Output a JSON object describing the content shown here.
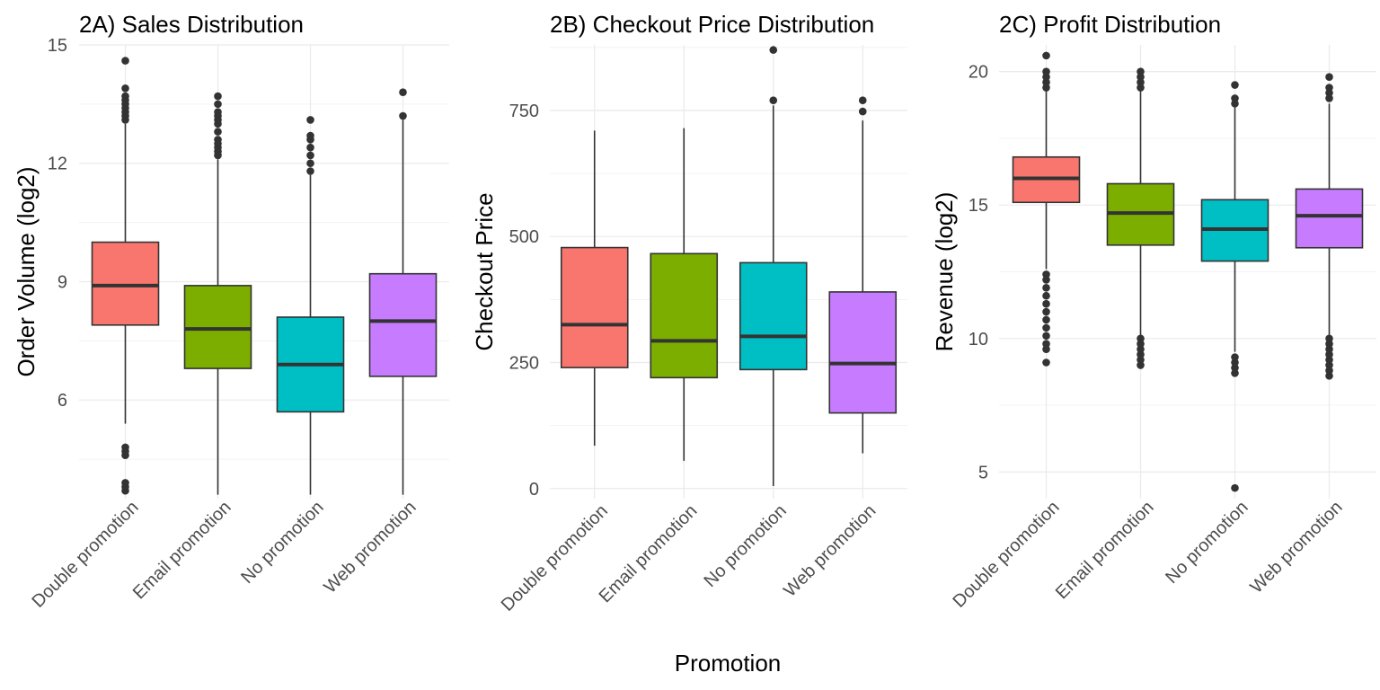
{
  "figure": {
    "xlabel": "Promotion"
  },
  "colors": {
    "Double promotion": "#F8766D",
    "Email promotion": "#7CAE00",
    "No promotion": "#00BFC4",
    "Web promotion": "#C77CFF"
  },
  "chart_data": [
    {
      "type": "box",
      "title": "2A) Sales Distribution",
      "xlabel": "",
      "ylabel": "Order Volume (log2)",
      "ylim": [
        3.5,
        15
      ],
      "yticks": [
        6,
        9,
        12,
        15
      ],
      "ytick_labels": [
        "6",
        "9",
        "12",
        "15"
      ],
      "grid": true,
      "categories": [
        "Double promotion",
        "Email promotion",
        "No promotion",
        "Web promotion"
      ],
      "boxes": [
        {
          "category": "Double promotion",
          "lower_whisker": 5.4,
          "q1": 7.9,
          "median": 8.9,
          "q3": 10.0,
          "upper_whisker": 13.0,
          "outliers": [
            3.7,
            3.8,
            3.9,
            4.6,
            4.7,
            4.8,
            13.1,
            13.2,
            13.3,
            13.4,
            13.5,
            13.6,
            13.7,
            13.9,
            14.6
          ]
        },
        {
          "category": "Email promotion",
          "lower_whisker": 3.6,
          "q1": 6.8,
          "median": 7.8,
          "q3": 8.9,
          "upper_whisker": 12.1,
          "outliers": [
            12.2,
            12.3,
            12.4,
            12.5,
            12.6,
            12.8,
            13.0,
            13.1,
            13.2,
            13.3,
            13.5,
            13.7
          ]
        },
        {
          "category": "No promotion",
          "lower_whisker": 3.6,
          "q1": 5.7,
          "median": 6.9,
          "q3": 8.1,
          "upper_whisker": 11.7,
          "outliers": [
            11.8,
            12.0,
            12.2,
            12.4,
            12.6,
            12.7,
            13.1
          ]
        },
        {
          "category": "Web promotion",
          "lower_whisker": 3.6,
          "q1": 6.6,
          "median": 8.0,
          "q3": 9.2,
          "upper_whisker": 13.1,
          "outliers": [
            13.2,
            13.8
          ]
        }
      ]
    },
    {
      "type": "box",
      "title": "2B) Checkout Price Distribution",
      "xlabel": "",
      "ylabel": "Checkout Price",
      "ylim": [
        -20,
        880
      ],
      "yticks": [
        0,
        250,
        500,
        750
      ],
      "ytick_labels": [
        "0",
        "250",
        "500",
        "750"
      ],
      "grid": true,
      "categories": [
        "Double promotion",
        "Email promotion",
        "No promotion",
        "Web promotion"
      ],
      "boxes": [
        {
          "category": "Double promotion",
          "lower_whisker": 85,
          "q1": 240,
          "median": 325,
          "q3": 478,
          "upper_whisker": 710,
          "outliers": []
        },
        {
          "category": "Email promotion",
          "lower_whisker": 55,
          "q1": 220,
          "median": 293,
          "q3": 466,
          "upper_whisker": 715,
          "outliers": []
        },
        {
          "category": "No promotion",
          "lower_whisker": 5,
          "q1": 236,
          "median": 302,
          "q3": 448,
          "upper_whisker": 760,
          "outliers": [
            770,
            870
          ]
        },
        {
          "category": "Web promotion",
          "lower_whisker": 70,
          "q1": 150,
          "median": 248,
          "q3": 390,
          "upper_whisker": 730,
          "outliers": [
            748,
            770
          ]
        }
      ]
    },
    {
      "type": "box",
      "title": "2C) Profit Distribution",
      "xlabel": "",
      "ylabel": "Revenue (log2)",
      "ylim": [
        4,
        21
      ],
      "yticks": [
        5,
        10,
        15,
        20
      ],
      "ytick_labels": [
        "5",
        "10",
        "15",
        "20"
      ],
      "grid": true,
      "categories": [
        "Double promotion",
        "Email promotion",
        "No promotion",
        "Web promotion"
      ],
      "boxes": [
        {
          "category": "Double promotion",
          "lower_whisker": 12.6,
          "q1": 15.1,
          "median": 16.0,
          "q3": 16.8,
          "upper_whisker": 19.3,
          "outliers": [
            9.1,
            9.6,
            9.8,
            10.1,
            10.4,
            10.7,
            11.0,
            11.3,
            11.6,
            11.9,
            12.2,
            12.4,
            19.4,
            19.6,
            19.8,
            20.0,
            20.6
          ]
        },
        {
          "category": "Email promotion",
          "lower_whisker": 10.1,
          "q1": 13.5,
          "median": 14.7,
          "q3": 15.8,
          "upper_whisker": 19.3,
          "outliers": [
            9.0,
            9.2,
            9.4,
            9.6,
            9.8,
            10.0,
            19.4,
            19.6,
            19.8,
            20.0
          ]
        },
        {
          "category": "No promotion",
          "lower_whisker": 9.5,
          "q1": 12.9,
          "median": 14.1,
          "q3": 15.2,
          "upper_whisker": 18.7,
          "outliers": [
            4.4,
            8.7,
            8.9,
            9.1,
            9.3,
            18.8,
            19.0,
            19.5
          ]
        },
        {
          "category": "Web promotion",
          "lower_whisker": 10.1,
          "q1": 13.4,
          "median": 14.6,
          "q3": 15.6,
          "upper_whisker": 18.8,
          "outliers": [
            8.6,
            8.8,
            9.0,
            9.2,
            9.4,
            9.6,
            9.8,
            10.0,
            19.0,
            19.2,
            19.4,
            19.8
          ]
        }
      ]
    }
  ]
}
